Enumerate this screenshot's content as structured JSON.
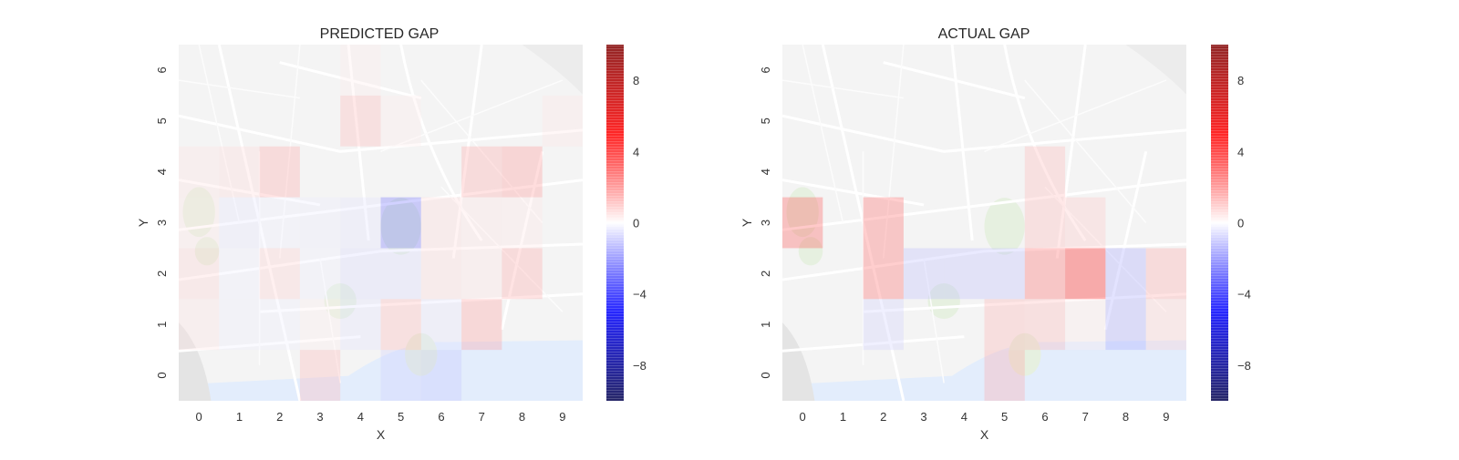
{
  "chart_data": [
    {
      "type": "heatmap",
      "title": "PREDICTED GAP",
      "xlabel": "X",
      "ylabel": "Y",
      "x_categories": [
        "0",
        "1",
        "2",
        "3",
        "4",
        "5",
        "6",
        "7",
        "8",
        "9"
      ],
      "y_categories": [
        "0",
        "1",
        "2",
        "3",
        "4",
        "5",
        "6"
      ],
      "grid": false,
      "background": "street map",
      "colormap": "seismic",
      "vmin": -10,
      "vmax": 10,
      "colorbar_ticks": [
        "8",
        "4",
        "0",
        "−4",
        "−8"
      ],
      "colorbar_tick_values": [
        8,
        4,
        0,
        -4,
        -8
      ],
      "cells": [
        {
          "x": 3,
          "y": 0,
          "value": 1.5
        },
        {
          "x": 5,
          "y": 0,
          "value": -1.0
        },
        {
          "x": 6,
          "y": 0,
          "value": -1.2
        },
        {
          "x": 0,
          "y": 1,
          "value": 0.6
        },
        {
          "x": 1,
          "y": 1,
          "value": -0.3
        },
        {
          "x": 2,
          "y": 1,
          "value": -0.3
        },
        {
          "x": 3,
          "y": 1,
          "value": 0.3
        },
        {
          "x": 4,
          "y": 1,
          "value": -0.6
        },
        {
          "x": 5,
          "y": 1,
          "value": 1.5
        },
        {
          "x": 6,
          "y": 1,
          "value": -0.6
        },
        {
          "x": 7,
          "y": 1,
          "value": 2.0
        },
        {
          "x": 0,
          "y": 2,
          "value": 0.9
        },
        {
          "x": 1,
          "y": 2,
          "value": -0.3
        },
        {
          "x": 2,
          "y": 2,
          "value": 1.0
        },
        {
          "x": 3,
          "y": 2,
          "value": -0.3
        },
        {
          "x": 4,
          "y": 2,
          "value": -0.8
        },
        {
          "x": 5,
          "y": 2,
          "value": -0.8
        },
        {
          "x": 6,
          "y": 2,
          "value": 0.8
        },
        {
          "x": 7,
          "y": 2,
          "value": 0.6
        },
        {
          "x": 8,
          "y": 2,
          "value": 1.8
        },
        {
          "x": 0,
          "y": 3,
          "value": 0.5
        },
        {
          "x": 1,
          "y": 3,
          "value": -0.5
        },
        {
          "x": 2,
          "y": 3,
          "value": -0.3
        },
        {
          "x": 3,
          "y": 3,
          "value": -0.4
        },
        {
          "x": 4,
          "y": 3,
          "value": -0.6
        },
        {
          "x": 5,
          "y": 3,
          "value": -3.0
        },
        {
          "x": 6,
          "y": 3,
          "value": 0.8
        },
        {
          "x": 7,
          "y": 3,
          "value": 0.6
        },
        {
          "x": 8,
          "y": 3,
          "value": 0.5
        },
        {
          "x": 0,
          "y": 4,
          "value": 0.6
        },
        {
          "x": 1,
          "y": 4,
          "value": 0.8
        },
        {
          "x": 2,
          "y": 4,
          "value": 1.8
        },
        {
          "x": 7,
          "y": 4,
          "value": 1.8
        },
        {
          "x": 8,
          "y": 4,
          "value": 2.2
        },
        {
          "x": 4,
          "y": 5,
          "value": 1.5
        },
        {
          "x": 5,
          "y": 5,
          "value": 0.4
        },
        {
          "x": 9,
          "y": 5,
          "value": 0.5
        },
        {
          "x": 4,
          "y": 6,
          "value": 0.4
        }
      ]
    },
    {
      "type": "heatmap",
      "title": "ACTUAL GAP",
      "xlabel": "X",
      "ylabel": "Y",
      "x_categories": [
        "0",
        "1",
        "2",
        "3",
        "4",
        "5",
        "6",
        "7",
        "8",
        "9"
      ],
      "y_categories": [
        "0",
        "1",
        "2",
        "3",
        "4",
        "5",
        "6"
      ],
      "grid": false,
      "background": "street map",
      "colormap": "seismic",
      "vmin": -10,
      "vmax": 10,
      "colorbar_ticks": [
        "8",
        "4",
        "0",
        "−4",
        "−8"
      ],
      "colorbar_tick_values": [
        8,
        4,
        0,
        -4,
        -8
      ],
      "cells": [
        {
          "x": 5,
          "y": 0,
          "value": 1.8
        },
        {
          "x": 2,
          "y": 1,
          "value": -1.0
        },
        {
          "x": 5,
          "y": 1,
          "value": 1.6
        },
        {
          "x": 6,
          "y": 1,
          "value": 1.5
        },
        {
          "x": 7,
          "y": 1,
          "value": 0.4
        },
        {
          "x": 8,
          "y": 1,
          "value": -1.8
        },
        {
          "x": 9,
          "y": 1,
          "value": 1.0
        },
        {
          "x": 2,
          "y": 2,
          "value": 3.2
        },
        {
          "x": 3,
          "y": 2,
          "value": -1.4
        },
        {
          "x": 4,
          "y": 2,
          "value": -1.4
        },
        {
          "x": 5,
          "y": 2,
          "value": -1.4
        },
        {
          "x": 6,
          "y": 2,
          "value": 3.2
        },
        {
          "x": 7,
          "y": 2,
          "value": 5.0
        },
        {
          "x": 8,
          "y": 2,
          "value": -1.8
        },
        {
          "x": 9,
          "y": 2,
          "value": 1.8
        },
        {
          "x": 0,
          "y": 3,
          "value": 3.5
        },
        {
          "x": 2,
          "y": 3,
          "value": 3.2
        },
        {
          "x": 6,
          "y": 3,
          "value": 1.5
        },
        {
          "x": 7,
          "y": 3,
          "value": 1.2
        },
        {
          "x": 6,
          "y": 4,
          "value": 1.5
        }
      ]
    }
  ]
}
